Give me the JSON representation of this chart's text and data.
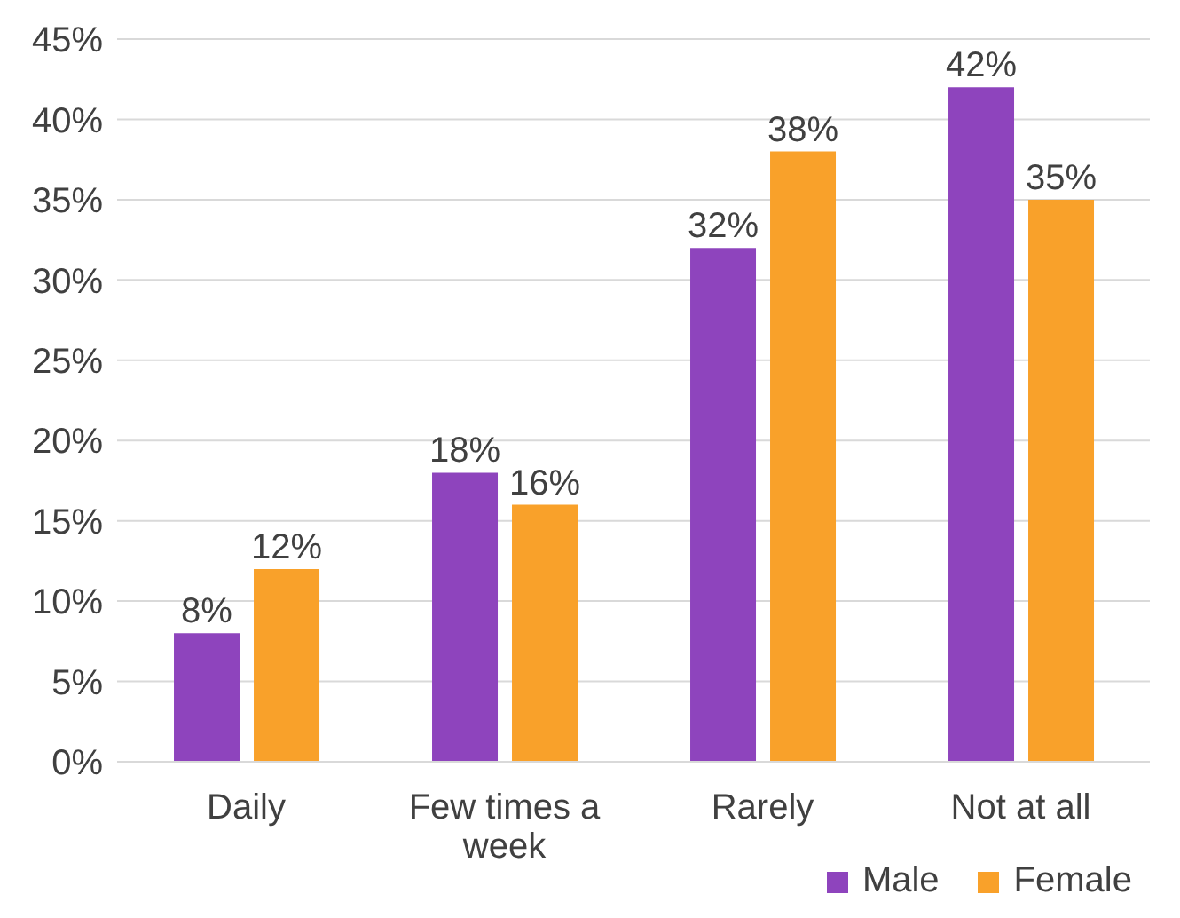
{
  "chart_data": {
    "type": "bar",
    "categories": [
      "Daily",
      "Few times a week",
      "Rarely",
      "Not at all"
    ],
    "series": [
      {
        "name": "Male",
        "color": "#8e44bd",
        "values": [
          8,
          18,
          32,
          42
        ],
        "value_labels": [
          "8%",
          "18%",
          "32%",
          "42%"
        ]
      },
      {
        "name": "Female",
        "color": "#f9a12a",
        "values": [
          12,
          16,
          38,
          35
        ],
        "value_labels": [
          "12%",
          "16%",
          "38%",
          "35%"
        ]
      }
    ],
    "ylim": [
      0,
      45
    ],
    "yticks": [
      {
        "value": 0,
        "label": "0%"
      },
      {
        "value": 5,
        "label": "5%"
      },
      {
        "value": 10,
        "label": "10%"
      },
      {
        "value": 15,
        "label": "15%"
      },
      {
        "value": 20,
        "label": "20%"
      },
      {
        "value": 25,
        "label": "25%"
      },
      {
        "value": 30,
        "label": "30%"
      },
      {
        "value": 35,
        "label": "35%"
      },
      {
        "value": 40,
        "label": "40%"
      },
      {
        "value": 45,
        "label": "45%"
      }
    ],
    "grid": "y",
    "legend": "bottom right"
  }
}
